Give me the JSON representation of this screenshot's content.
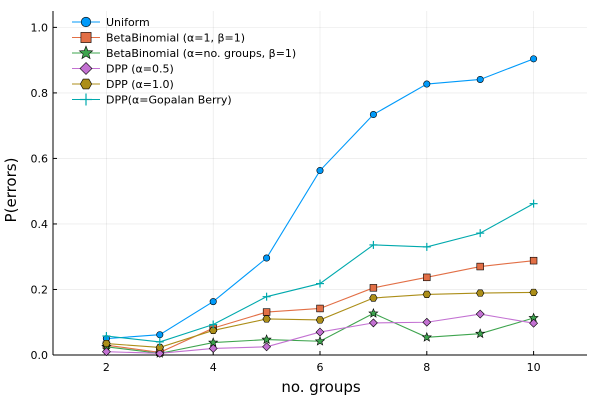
{
  "chart_data": {
    "type": "line",
    "title": "",
    "xlabel": "no. groups",
    "ylabel": "P(errors)",
    "xlim": [
      1,
      11
    ],
    "ylim": [
      0,
      1.05
    ],
    "xticks": [
      2,
      4,
      6,
      8,
      10
    ],
    "yticks": [
      0.0,
      0.2,
      0.4,
      0.6,
      0.8,
      1.0
    ],
    "ytick_labels": [
      "0.0",
      "0.2",
      "0.4",
      "0.6",
      "0.8",
      "1.0"
    ],
    "grid": true,
    "legend_position": "top-left",
    "x": [
      2,
      3,
      4,
      5,
      6,
      7,
      8,
      9,
      10
    ],
    "series": [
      {
        "name": "Uniform",
        "marker": "circle",
        "color": "#009AFA",
        "values": [
          0.05,
          0.062,
          0.163,
          0.296,
          0.563,
          0.734,
          0.827,
          0.841,
          0.904
        ]
      },
      {
        "name": "BetaBinomial (α=1, β=1)",
        "marker": "square",
        "color": "#E26F46",
        "values": [
          0.03,
          0.008,
          0.082,
          0.131,
          0.142,
          0.205,
          0.237,
          0.27,
          0.288
        ]
      },
      {
        "name": "BetaBinomial (α=no. groups, β=1)",
        "marker": "star",
        "color": "#3EA44E",
        "values": [
          0.025,
          0.005,
          0.038,
          0.047,
          0.042,
          0.127,
          0.054,
          0.065,
          0.113
        ]
      },
      {
        "name": "DPP (α=0.5)",
        "marker": "diamond",
        "color": "#C371D2",
        "values": [
          0.01,
          0.005,
          0.02,
          0.025,
          0.07,
          0.098,
          0.1,
          0.125,
          0.097
        ]
      },
      {
        "name": "DPP (α=1.0)",
        "marker": "hexagon",
        "color": "#AC8E18",
        "values": [
          0.035,
          0.023,
          0.075,
          0.11,
          0.107,
          0.174,
          0.185,
          0.189,
          0.191
        ]
      },
      {
        "name": "DPP(α=Gopalan Berry)",
        "marker": "cross",
        "color": "#00A9AD",
        "values": [
          0.058,
          0.04,
          0.093,
          0.178,
          0.218,
          0.336,
          0.33,
          0.372,
          0.462
        ]
      }
    ]
  }
}
